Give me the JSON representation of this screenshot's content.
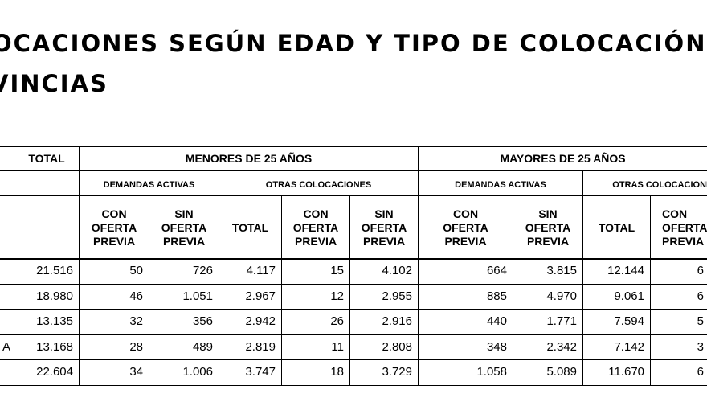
{
  "title": {
    "line1": "OCACIONES SEGÚN EDAD Y TIPO DE COLOCACIÓN",
    "line2": "VINCIAS"
  },
  "header": {
    "total": "TOTAL",
    "menores": "MENORES DE 25 AÑOS",
    "mayores": "MAYORES DE 25 AÑOS",
    "demandas_activas_1": "DEMANDAS ACTIVAS",
    "otras_colocaciones_1": "OTRAS COLOCACIONES",
    "demandas_activas_2": "DEMANDAS ACTIVAS",
    "otras_colocaciones_2": "OTRAS COLOCACIONES",
    "cols": {
      "c1": [
        "CON",
        "OFERTA",
        "PREVIA"
      ],
      "c2": [
        "SIN",
        "OFERTA",
        "PREVIA"
      ],
      "c3": "TOTAL",
      "c4": [
        "CON",
        "OFERTA",
        "PREVIA"
      ],
      "c5": [
        "SIN",
        "OFERTA",
        "PREVIA"
      ],
      "c6": [
        "CON",
        "OFERTA",
        "PREVIA"
      ],
      "c7": [
        "SIN",
        "OFERTA",
        "PREVIA"
      ],
      "c8": "TOTAL",
      "c9": [
        "CON",
        "OFERTA",
        "PREVIA"
      ]
    }
  },
  "rows": [
    {
      "label": "",
      "total": "21.516",
      "c1": "50",
      "c2": "726",
      "c3": "4.117",
      "c4": "15",
      "c5": "4.102",
      "c6": "664",
      "c7": "3.815",
      "c8": "12.144",
      "c9": "6"
    },
    {
      "label": "",
      "total": "18.980",
      "c1": "46",
      "c2": "1.051",
      "c3": "2.967",
      "c4": "12",
      "c5": "2.955",
      "c6": "885",
      "c7": "4.970",
      "c8": "9.061",
      "c9": "6"
    },
    {
      "label": "",
      "total": "13.135",
      "c1": "32",
      "c2": "356",
      "c3": "2.942",
      "c4": "26",
      "c5": "2.916",
      "c6": "440",
      "c7": "1.771",
      "c8": "7.594",
      "c9": "5"
    },
    {
      "label": "A",
      "total": "13.168",
      "c1": "28",
      "c2": "489",
      "c3": "2.819",
      "c4": "11",
      "c5": "2.808",
      "c6": "348",
      "c7": "2.342",
      "c8": "7.142",
      "c9": "3"
    },
    {
      "label": "",
      "total": "22.604",
      "c1": "34",
      "c2": "1.006",
      "c3": "3.747",
      "c4": "18",
      "c5": "3.729",
      "c6": "1.058",
      "c7": "5.089",
      "c8": "11.670",
      "c9": "6"
    }
  ]
}
